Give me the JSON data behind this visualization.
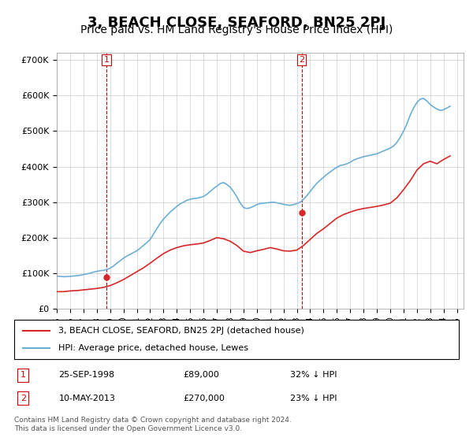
{
  "title": "3, BEACH CLOSE, SEAFORD, BN25 2PJ",
  "subtitle": "Price paid vs. HM Land Registry's House Price Index (HPI)",
  "title_fontsize": 13,
  "subtitle_fontsize": 10,
  "ylabel_ticks": [
    "£0",
    "£100K",
    "£200K",
    "£300K",
    "£400K",
    "£500K",
    "£600K",
    "£700K"
  ],
  "ytick_values": [
    0,
    100000,
    200000,
    300000,
    400000,
    500000,
    600000,
    700000
  ],
  "ylim": [
    0,
    720000
  ],
  "xlim_start": 1995.0,
  "xlim_end": 2025.5,
  "hpi_color": "#6baed6",
  "price_color": "#d62728",
  "vline_color": "#cc0000",
  "grid_color": "#cccccc",
  "purchase1_x": 1998.73,
  "purchase1_y": 89000,
  "purchase2_x": 2013.36,
  "purchase2_y": 270000,
  "legend_label1": "3, BEACH CLOSE, SEAFORD, BN25 2PJ (detached house)",
  "legend_label2": "HPI: Average price, detached house, Lewes",
  "table_row1": [
    "1",
    "25-SEP-1998",
    "£89,000",
    "32% ↓ HPI"
  ],
  "table_row2": [
    "2",
    "10-MAY-2013",
    "£270,000",
    "23% ↓ HPI"
  ],
  "footnote": "Contains HM Land Registry data © Crown copyright and database right 2024.\nThis data is licensed under the Open Government Licence v3.0.",
  "hpi_data_x": [
    1995.0,
    1995.25,
    1995.5,
    1995.75,
    1996.0,
    1996.25,
    1996.5,
    1996.75,
    1997.0,
    1997.25,
    1997.5,
    1997.75,
    1998.0,
    1998.25,
    1998.5,
    1998.75,
    1999.0,
    1999.25,
    1999.5,
    1999.75,
    2000.0,
    2000.25,
    2000.5,
    2000.75,
    2001.0,
    2001.25,
    2001.5,
    2001.75,
    2002.0,
    2002.25,
    2002.5,
    2002.75,
    2003.0,
    2003.25,
    2003.5,
    2003.75,
    2004.0,
    2004.25,
    2004.5,
    2004.75,
    2005.0,
    2005.25,
    2005.5,
    2005.75,
    2006.0,
    2006.25,
    2006.5,
    2006.75,
    2007.0,
    2007.25,
    2007.5,
    2007.75,
    2008.0,
    2008.25,
    2008.5,
    2008.75,
    2009.0,
    2009.25,
    2009.5,
    2009.75,
    2010.0,
    2010.25,
    2010.5,
    2010.75,
    2011.0,
    2011.25,
    2011.5,
    2011.75,
    2012.0,
    2012.25,
    2012.5,
    2012.75,
    2013.0,
    2013.25,
    2013.5,
    2013.75,
    2014.0,
    2014.25,
    2014.5,
    2014.75,
    2015.0,
    2015.25,
    2015.5,
    2015.75,
    2016.0,
    2016.25,
    2016.5,
    2016.75,
    2017.0,
    2017.25,
    2017.5,
    2017.75,
    2018.0,
    2018.25,
    2018.5,
    2018.75,
    2019.0,
    2019.25,
    2019.5,
    2019.75,
    2020.0,
    2020.25,
    2020.5,
    2020.75,
    2021.0,
    2021.25,
    2021.5,
    2021.75,
    2022.0,
    2022.25,
    2022.5,
    2022.75,
    2023.0,
    2023.25,
    2023.5,
    2023.75,
    2024.0,
    2024.25,
    2024.5
  ],
  "hpi_data_y": [
    92000,
    91000,
    90000,
    90500,
    91000,
    92000,
    93000,
    94000,
    96000,
    98000,
    100000,
    103000,
    105000,
    107000,
    108000,
    110000,
    114000,
    120000,
    128000,
    135000,
    142000,
    148000,
    153000,
    158000,
    163000,
    170000,
    178000,
    186000,
    195000,
    210000,
    225000,
    240000,
    252000,
    262000,
    272000,
    280000,
    288000,
    295000,
    300000,
    305000,
    308000,
    310000,
    311000,
    313000,
    316000,
    322000,
    330000,
    338000,
    345000,
    352000,
    355000,
    350000,
    342000,
    330000,
    315000,
    298000,
    285000,
    282000,
    284000,
    288000,
    293000,
    296000,
    297000,
    298000,
    299000,
    300000,
    298000,
    296000,
    294000,
    292000,
    291000,
    293000,
    296000,
    300000,
    308000,
    318000,
    330000,
    342000,
    353000,
    362000,
    370000,
    378000,
    385000,
    392000,
    398000,
    403000,
    405000,
    408000,
    412000,
    418000,
    422000,
    425000,
    428000,
    430000,
    432000,
    434000,
    436000,
    440000,
    444000,
    448000,
    452000,
    458000,
    468000,
    482000,
    500000,
    520000,
    545000,
    565000,
    580000,
    590000,
    592000,
    585000,
    575000,
    568000,
    562000,
    558000,
    560000,
    565000,
    570000
  ],
  "price_data_x": [
    1995.0,
    1995.5,
    1996.0,
    1996.5,
    1997.0,
    1997.5,
    1998.0,
    1998.5,
    1999.0,
    1999.5,
    2000.0,
    2000.5,
    2001.0,
    2001.5,
    2002.0,
    2002.5,
    2003.0,
    2003.5,
    2004.0,
    2004.5,
    2005.0,
    2005.5,
    2006.0,
    2006.5,
    2007.0,
    2007.5,
    2008.0,
    2008.5,
    2009.0,
    2009.5,
    2010.0,
    2010.5,
    2011.0,
    2011.5,
    2012.0,
    2012.5,
    2013.0,
    2013.5,
    2014.0,
    2014.5,
    2015.0,
    2015.5,
    2016.0,
    2016.5,
    2017.0,
    2017.5,
    2018.0,
    2018.5,
    2019.0,
    2019.5,
    2020.0,
    2020.5,
    2021.0,
    2021.5,
    2022.0,
    2022.5,
    2023.0,
    2023.5,
    2024.0,
    2024.5
  ],
  "price_data_y": [
    48000,
    48000,
    50000,
    51000,
    53000,
    55000,
    57000,
    60000,
    65000,
    73000,
    82000,
    93000,
    104000,
    115000,
    128000,
    142000,
    155000,
    165000,
    172000,
    177000,
    180000,
    182000,
    185000,
    192000,
    200000,
    197000,
    190000,
    178000,
    162000,
    158000,
    163000,
    167000,
    172000,
    168000,
    163000,
    162000,
    165000,
    178000,
    195000,
    212000,
    225000,
    240000,
    255000,
    265000,
    272000,
    278000,
    282000,
    285000,
    288000,
    292000,
    297000,
    312000,
    335000,
    360000,
    390000,
    408000,
    415000,
    408000,
    420000,
    430000
  ]
}
